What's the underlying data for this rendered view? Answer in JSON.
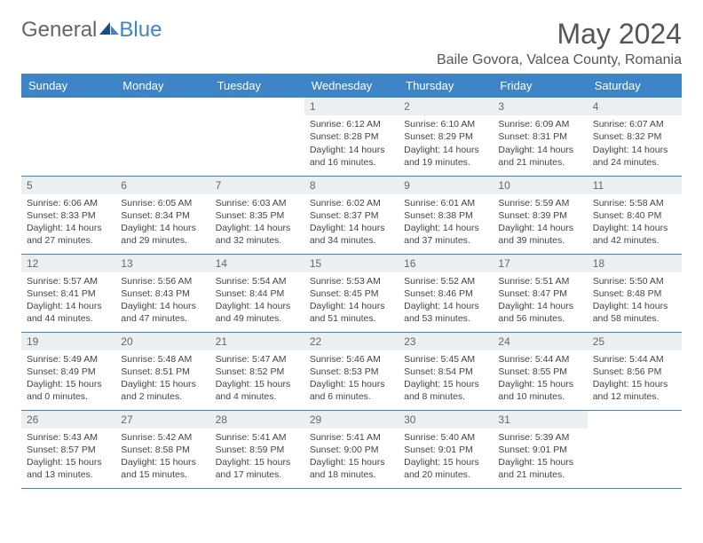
{
  "logo": {
    "text1": "General",
    "text2": "Blue"
  },
  "title": "May 2024",
  "location": "Baile Govora, Valcea County, Romania",
  "colors": {
    "header_bg": "#3d85c6",
    "header_text": "#ffffff",
    "daynum_bg": "#eceff1",
    "border": "#3d85c6"
  },
  "weekdays": [
    "Sunday",
    "Monday",
    "Tuesday",
    "Wednesday",
    "Thursday",
    "Friday",
    "Saturday"
  ],
  "weeks": [
    [
      null,
      null,
      null,
      {
        "n": "1",
        "sr": "6:12 AM",
        "ss": "8:28 PM",
        "dl": "14 hours and 16 minutes."
      },
      {
        "n": "2",
        "sr": "6:10 AM",
        "ss": "8:29 PM",
        "dl": "14 hours and 19 minutes."
      },
      {
        "n": "3",
        "sr": "6:09 AM",
        "ss": "8:31 PM",
        "dl": "14 hours and 21 minutes."
      },
      {
        "n": "4",
        "sr": "6:07 AM",
        "ss": "8:32 PM",
        "dl": "14 hours and 24 minutes."
      }
    ],
    [
      {
        "n": "5",
        "sr": "6:06 AM",
        "ss": "8:33 PM",
        "dl": "14 hours and 27 minutes."
      },
      {
        "n": "6",
        "sr": "6:05 AM",
        "ss": "8:34 PM",
        "dl": "14 hours and 29 minutes."
      },
      {
        "n": "7",
        "sr": "6:03 AM",
        "ss": "8:35 PM",
        "dl": "14 hours and 32 minutes."
      },
      {
        "n": "8",
        "sr": "6:02 AM",
        "ss": "8:37 PM",
        "dl": "14 hours and 34 minutes."
      },
      {
        "n": "9",
        "sr": "6:01 AM",
        "ss": "8:38 PM",
        "dl": "14 hours and 37 minutes."
      },
      {
        "n": "10",
        "sr": "5:59 AM",
        "ss": "8:39 PM",
        "dl": "14 hours and 39 minutes."
      },
      {
        "n": "11",
        "sr": "5:58 AM",
        "ss": "8:40 PM",
        "dl": "14 hours and 42 minutes."
      }
    ],
    [
      {
        "n": "12",
        "sr": "5:57 AM",
        "ss": "8:41 PM",
        "dl": "14 hours and 44 minutes."
      },
      {
        "n": "13",
        "sr": "5:56 AM",
        "ss": "8:43 PM",
        "dl": "14 hours and 47 minutes."
      },
      {
        "n": "14",
        "sr": "5:54 AM",
        "ss": "8:44 PM",
        "dl": "14 hours and 49 minutes."
      },
      {
        "n": "15",
        "sr": "5:53 AM",
        "ss": "8:45 PM",
        "dl": "14 hours and 51 minutes."
      },
      {
        "n": "16",
        "sr": "5:52 AM",
        "ss": "8:46 PM",
        "dl": "14 hours and 53 minutes."
      },
      {
        "n": "17",
        "sr": "5:51 AM",
        "ss": "8:47 PM",
        "dl": "14 hours and 56 minutes."
      },
      {
        "n": "18",
        "sr": "5:50 AM",
        "ss": "8:48 PM",
        "dl": "14 hours and 58 minutes."
      }
    ],
    [
      {
        "n": "19",
        "sr": "5:49 AM",
        "ss": "8:49 PM",
        "dl": "15 hours and 0 minutes."
      },
      {
        "n": "20",
        "sr": "5:48 AM",
        "ss": "8:51 PM",
        "dl": "15 hours and 2 minutes."
      },
      {
        "n": "21",
        "sr": "5:47 AM",
        "ss": "8:52 PM",
        "dl": "15 hours and 4 minutes."
      },
      {
        "n": "22",
        "sr": "5:46 AM",
        "ss": "8:53 PM",
        "dl": "15 hours and 6 minutes."
      },
      {
        "n": "23",
        "sr": "5:45 AM",
        "ss": "8:54 PM",
        "dl": "15 hours and 8 minutes."
      },
      {
        "n": "24",
        "sr": "5:44 AM",
        "ss": "8:55 PM",
        "dl": "15 hours and 10 minutes."
      },
      {
        "n": "25",
        "sr": "5:44 AM",
        "ss": "8:56 PM",
        "dl": "15 hours and 12 minutes."
      }
    ],
    [
      {
        "n": "26",
        "sr": "5:43 AM",
        "ss": "8:57 PM",
        "dl": "15 hours and 13 minutes."
      },
      {
        "n": "27",
        "sr": "5:42 AM",
        "ss": "8:58 PM",
        "dl": "15 hours and 15 minutes."
      },
      {
        "n": "28",
        "sr": "5:41 AM",
        "ss": "8:59 PM",
        "dl": "15 hours and 17 minutes."
      },
      {
        "n": "29",
        "sr": "5:41 AM",
        "ss": "9:00 PM",
        "dl": "15 hours and 18 minutes."
      },
      {
        "n": "30",
        "sr": "5:40 AM",
        "ss": "9:01 PM",
        "dl": "15 hours and 20 minutes."
      },
      {
        "n": "31",
        "sr": "5:39 AM",
        "ss": "9:01 PM",
        "dl": "15 hours and 21 minutes."
      },
      null
    ]
  ]
}
